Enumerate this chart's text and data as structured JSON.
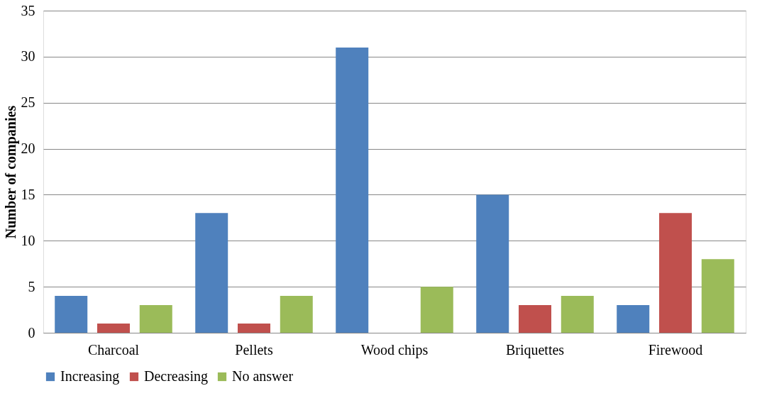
{
  "chart_data": {
    "type": "bar",
    "ylabel": "Number of companies",
    "categories": [
      "Charcoal",
      "Pellets",
      "Wood chips",
      "Briquettes",
      "Firewood"
    ],
    "series": [
      {
        "name": "Increasing",
        "color": "#4f81bd",
        "values": [
          4,
          13,
          31,
          15,
          3
        ]
      },
      {
        "name": "Decreasing",
        "color": "#c0504d",
        "values": [
          1,
          1,
          0,
          3,
          13
        ]
      },
      {
        "name": "No answer",
        "color": "#9bbb59",
        "values": [
          3,
          4,
          5,
          4,
          8
        ]
      }
    ],
    "ylim": [
      0,
      35
    ],
    "yticks": [
      0,
      5,
      10,
      15,
      20,
      25,
      30,
      35
    ],
    "grid": "y",
    "legend": "bottom"
  }
}
